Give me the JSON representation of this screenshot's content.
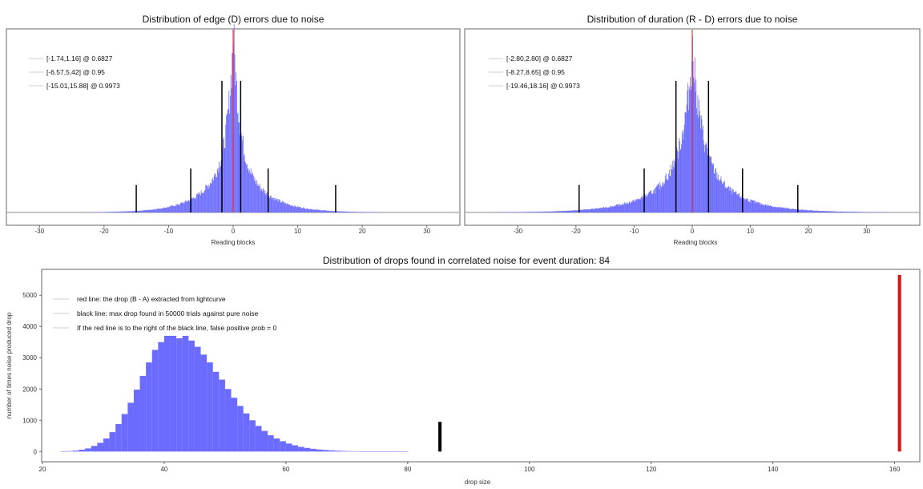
{
  "colors": {
    "histogram": "#6b6bff",
    "red_line": "#e01010",
    "black_line": "#000000",
    "frame": "#666666",
    "legend_swatch": "#cccccc"
  },
  "chart_data": [
    {
      "type": "histogram",
      "title": "Distribution of edge (D) errors due to noise",
      "xlabel": "Reading blocks",
      "ylabel": "",
      "xlim": [
        -35,
        35
      ],
      "xticks": [
        -30,
        -20,
        -10,
        0,
        10,
        20,
        30
      ],
      "legend_position": "top-left",
      "legend": [
        "[-1.74,1.16] @ 0.6827",
        "[-6.57,5.42] @ 0.95",
        "[-15.01,15.88] @ 0.9973"
      ],
      "distribution": {
        "center": 0,
        "peak_relative_height": 0.98,
        "decay_scale": 0.9,
        "tail_scale": 4.0
      },
      "red_line_x": 0,
      "confidence_lines": [
        {
          "x": -1.74,
          "rel_height": 0.72
        },
        {
          "x": 1.16,
          "rel_height": 0.72
        },
        {
          "x": -6.57,
          "rel_height": 0.24
        },
        {
          "x": 5.42,
          "rel_height": 0.24
        },
        {
          "x": -15.01,
          "rel_height": 0.15
        },
        {
          "x": 15.88,
          "rel_height": 0.15
        }
      ],
      "grid": false
    },
    {
      "type": "histogram",
      "title": "Distribution of duration (R - D) errors due to noise",
      "xlabel": "Reading blocks",
      "ylabel": "",
      "xlim": [
        -39,
        39
      ],
      "xticks": [
        -30,
        -20,
        -10,
        0,
        10,
        20,
        30
      ],
      "legend_position": "top-left",
      "legend": [
        "[-2.80,2.80] @ 0.6827",
        "[-8.27,8.65] @ 0.95",
        "[-19.46,18.16] @ 0.9973"
      ],
      "distribution": {
        "center": 0,
        "peak_relative_height": 0.88,
        "decay_scale": 1.6,
        "tail_scale": 6.0
      },
      "red_line_x": 0,
      "confidence_lines": [
        {
          "x": -2.8,
          "rel_height": 0.72
        },
        {
          "x": 2.8,
          "rel_height": 0.72
        },
        {
          "x": -8.27,
          "rel_height": 0.24
        },
        {
          "x": 8.65,
          "rel_height": 0.24
        },
        {
          "x": -19.46,
          "rel_height": 0.15
        },
        {
          "x": 18.16,
          "rel_height": 0.15
        }
      ],
      "grid": false
    },
    {
      "type": "bar",
      "title": "Distribution of drops found in correlated noise for event duration: 84",
      "xlabel": "drop size",
      "ylabel": "number of times noise produced drop",
      "xlim": [
        20,
        164
      ],
      "ylim": [
        -300,
        5800
      ],
      "xticks": [
        20,
        40,
        60,
        80,
        100,
        120,
        140,
        160
      ],
      "yticks": [
        0,
        1000,
        2000,
        3000,
        4000,
        5000
      ],
      "legend_position": "top-left",
      "legend": [
        "red line: the drop (B - A) extracted from lightcurve",
        "black line: max drop found in 50000 trials against pure noise",
        "If the red line is to the right of the black line, false positive prob = 0"
      ],
      "bins": {
        "x": [
          23,
          24,
          25,
          26,
          27,
          28,
          29,
          30,
          31,
          32,
          33,
          34,
          35,
          36,
          37,
          38,
          39,
          40,
          41,
          42,
          43,
          44,
          45,
          46,
          47,
          48,
          49,
          50,
          51,
          52,
          53,
          54,
          55,
          56,
          57,
          58,
          59,
          60,
          61,
          62,
          63,
          64,
          65,
          66,
          67,
          68,
          69,
          70,
          71,
          72,
          73,
          74,
          75,
          76,
          77,
          78,
          79,
          80,
          81,
          82,
          83,
          84
        ],
        "values": [
          5,
          15,
          30,
          60,
          100,
          180,
          280,
          420,
          620,
          880,
          1200,
          1560,
          1980,
          2420,
          2850,
          3250,
          3500,
          3700,
          3700,
          3620,
          3700,
          3550,
          3350,
          3100,
          2850,
          2550,
          2300,
          2000,
          1720,
          1460,
          1220,
          1000,
          820,
          660,
          520,
          420,
          330,
          255,
          200,
          150,
          115,
          88,
          66,
          50,
          38,
          28,
          20,
          14,
          10,
          7,
          5,
          3,
          2,
          2,
          1,
          1,
          1,
          0,
          0,
          0,
          0,
          0
        ]
      },
      "red_line": {
        "x": 160.8,
        "y_top": 5650
      },
      "black_line": {
        "x": 85.3,
        "y_top": 950
      },
      "grid": false
    }
  ]
}
